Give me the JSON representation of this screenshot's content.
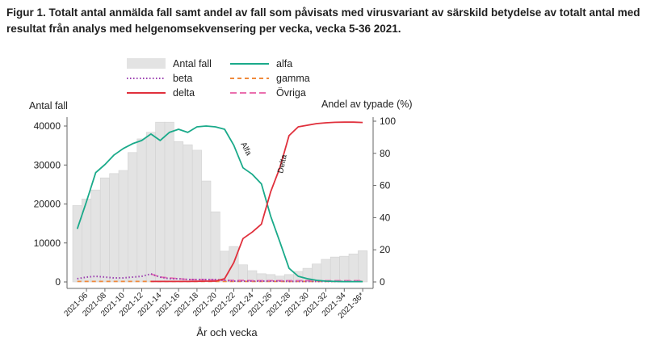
{
  "chart_data": {
    "type": "bar+line",
    "title": "Figur 1. Totalt antal anmälda fall samt andel av fall som påvisats med virusvariant av särskild betydelse av totalt antal med resultat från analys med helgenomsekvensering per vecka, vecka 5-36 2021.",
    "xlabel": "År och vecka",
    "ylabel_left": "Antal fall",
    "ylabel_right": "Andel av typade (%)",
    "ylim_left": [
      0,
      40000
    ],
    "ylim_right": [
      0,
      100
    ],
    "yticks_left": [
      "0",
      "10000",
      "20000",
      "30000",
      "40000"
    ],
    "yticks_right": [
      "0",
      "20",
      "40",
      "60",
      "80",
      "100"
    ],
    "weeks": [
      5,
      6,
      7,
      8,
      9,
      10,
      11,
      12,
      13,
      14,
      15,
      16,
      17,
      18,
      19,
      20,
      21,
      22,
      23,
      24,
      25,
      26,
      27,
      28,
      29,
      30,
      31,
      32,
      33,
      34,
      35,
      36
    ],
    "xtick_labels": [
      "2021-06",
      "2021-08",
      "2021-10",
      "2021-12",
      "2021-14",
      "2021-16",
      "2021-18",
      "2021-20",
      "2021-22",
      "2021-24",
      "2021-26",
      "2021-28",
      "2021-30",
      "2021-32",
      "2021-34",
      "2021-36*"
    ],
    "bars": {
      "name": "Antal fall",
      "color": "#e3e3e3",
      "values": [
        19600,
        21300,
        23600,
        26700,
        27800,
        28600,
        33200,
        36700,
        38400,
        41000,
        41000,
        36000,
        35200,
        33800,
        25900,
        18000,
        7900,
        9100,
        4400,
        2900,
        2100,
        1900,
        1500,
        1900,
        2700,
        3500,
        4600,
        5800,
        6400,
        6600,
        7200,
        8000
      ]
    },
    "series": [
      {
        "name": "alfa",
        "color": "#1aaa8a",
        "style": "solid",
        "values": [
          33,
          50,
          68,
          73,
          79,
          83,
          86,
          88,
          92,
          88,
          93,
          95,
          93,
          96.5,
          97,
          96.5,
          95,
          85,
          71,
          67,
          61,
          41,
          25,
          8.5,
          3.5,
          2,
          1,
          0.5,
          0.3,
          0.2,
          0.2,
          0.2
        ]
      },
      {
        "name": "beta",
        "color": "#9b3fb0",
        "style": "dotted",
        "values": [
          2,
          3,
          3.5,
          3,
          2.5,
          2.5,
          3,
          3.5,
          5,
          3,
          2,
          2,
          1.5,
          1.5,
          1.5,
          1.5,
          1,
          0.5,
          0.5,
          0.5,
          0.5,
          0.5,
          0.5,
          0.3,
          0.3,
          0.3,
          0.3,
          0.3,
          0.3,
          0.3,
          0.3,
          0.3
        ]
      },
      {
        "name": "gamma",
        "color": "#f08a3c",
        "style": "dashed",
        "values": [
          0.3,
          0.3,
          0.3,
          0.3,
          0.3,
          0.3,
          0.3,
          0.3,
          0.3,
          0.3,
          0.3,
          0.3,
          0.3,
          0.3,
          0.3,
          0.3,
          0.3,
          0.3,
          0.3,
          0.3,
          0.3,
          0.3,
          0.3,
          0.3,
          0.3,
          0.3,
          0.3,
          0.3,
          0.3,
          0.3,
          0.3,
          0.3
        ]
      },
      {
        "name": "delta",
        "color": "#e0303c",
        "style": "solid",
        "values": [
          null,
          null,
          null,
          null,
          null,
          null,
          null,
          null,
          0.3,
          0.3,
          0.3,
          0.3,
          0.3,
          0.4,
          0.5,
          0.5,
          2,
          12,
          27,
          31,
          36,
          56,
          71,
          91,
          96.5,
          97.5,
          98.5,
          99,
          99.3,
          99.4,
          99.4,
          99.2
        ]
      },
      {
        "name": "Övriga",
        "color": "#ea6fae",
        "style": "longdash",
        "values": [
          null,
          null,
          null,
          null,
          null,
          null,
          null,
          null,
          5,
          3,
          2.5,
          2,
          1.5,
          1.5,
          1.5,
          1.2,
          1,
          1,
          1,
          0.8,
          0.8,
          0.8,
          0.8,
          0.8,
          0.8,
          0.8,
          0.8,
          0.8,
          0.8,
          0.8,
          0.8,
          0.8
        ]
      }
    ],
    "legend": [
      "Antal fall",
      "alfa",
      "beta",
      "gamma",
      "delta",
      "Övriga"
    ],
    "legend_position": "top",
    "annotations": [
      "Alfa",
      "Delta"
    ],
    "grid": false
  }
}
